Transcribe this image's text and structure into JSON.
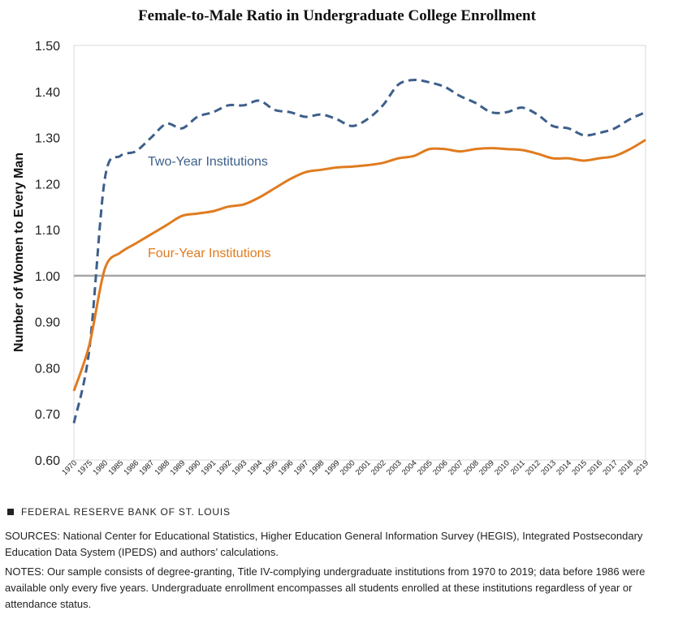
{
  "footer": {
    "brand": "FEDERAL RESERVE BANK OF ST. LOUIS",
    "sources": "SOURCES: National Center for Educational Statistics, Higher Education General Information Survey (HEGIS), Integrated Postsecondary Education Data System (IPEDS) and authors’ calculations.",
    "notes": "NOTES: Our sample consists of degree-granting, Title IV-complying undergraduate institutions from 1970 to 2019; data before 1986 were available only every five years. Undergraduate enrollment encompasses all students enrolled at these institutions regardless of year or attendance status."
  },
  "chart_data": {
    "type": "line",
    "title": "Female-to-Male Ratio in Undergraduate College Enrollment",
    "xlabel": "",
    "ylabel": "Number of Women to Every Man",
    "ylim": [
      0.6,
      1.5
    ],
    "yticks": [
      "0.60",
      "0.70",
      "0.80",
      "0.90",
      "1.00",
      "1.10",
      "1.20",
      "1.30",
      "1.40",
      "1.50"
    ],
    "categories": [
      "1970",
      "1975",
      "1980",
      "1985",
      "1986",
      "1987",
      "1988",
      "1989",
      "1990",
      "1991",
      "1992",
      "1993",
      "1994",
      "1995",
      "1996",
      "1997",
      "1998",
      "1999",
      "2000",
      "2001",
      "2002",
      "2003",
      "2004",
      "2005",
      "2006",
      "2007",
      "2008",
      "2009",
      "2010",
      "2011",
      "2012",
      "2013",
      "2014",
      "2015",
      "2016",
      "2017",
      "2018",
      "2019"
    ],
    "grid": false,
    "reference_line": 1.0,
    "series": [
      {
        "name": "Two-Year Institutions",
        "color": "#3d5f8a",
        "style": "dashed",
        "values": [
          0.68,
          0.84,
          1.21,
          1.26,
          1.27,
          1.3,
          1.33,
          1.32,
          1.345,
          1.355,
          1.37,
          1.37,
          1.38,
          1.36,
          1.355,
          1.345,
          1.35,
          1.34,
          1.325,
          1.34,
          1.37,
          1.415,
          1.425,
          1.42,
          1.41,
          1.39,
          1.375,
          1.355,
          1.355,
          1.365,
          1.35,
          1.325,
          1.32,
          1.305,
          1.31,
          1.32,
          1.34,
          1.355
        ]
      },
      {
        "name": "Four-Year Institutions",
        "color": "#e07b1f",
        "style": "solid",
        "values": [
          0.75,
          0.85,
          1.015,
          1.05,
          1.07,
          1.09,
          1.11,
          1.13,
          1.135,
          1.14,
          1.15,
          1.155,
          1.17,
          1.19,
          1.21,
          1.225,
          1.23,
          1.235,
          1.237,
          1.24,
          1.245,
          1.255,
          1.26,
          1.275,
          1.275,
          1.27,
          1.275,
          1.277,
          1.275,
          1.273,
          1.265,
          1.255,
          1.255,
          1.25,
          1.255,
          1.26,
          1.275,
          1.295
        ]
      }
    ]
  }
}
